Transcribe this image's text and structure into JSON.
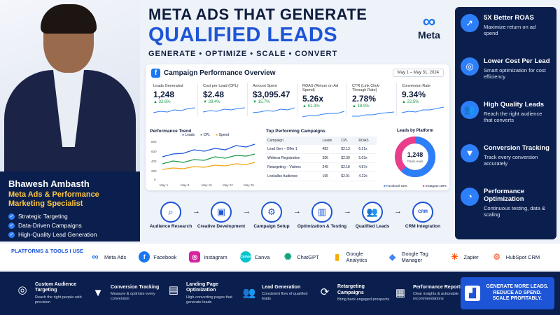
{
  "profile": {
    "name": "Bhawesh Ambasth",
    "role": "Meta Ads & Performance Marketing Specialist",
    "skills": [
      "Strategic Targeting",
      "Data-Driven Campaigns",
      "High-Quality Lead Generation"
    ]
  },
  "header": {
    "line1": "META ADS THAT GENERATE",
    "line2": "QUALIFIED LEADS",
    "tagline": "GENERATE • OPTIMIZE • SCALE • CONVERT",
    "logo_word": "Meta",
    "colors": {
      "accent": "#1d55d6",
      "navy": "#0b1f4e",
      "gold": "#ffc83d"
    }
  },
  "benefits": [
    {
      "icon": "rocket-icon",
      "title": "5X Better ROAS",
      "desc": "Maximize return on ad spend"
    },
    {
      "icon": "target-icon",
      "title": "Lower Cost Per Lead",
      "desc": "Smart optimization for cost efficiency"
    },
    {
      "icon": "people-icon",
      "title": "High Quality Leads",
      "desc": "Reach the right audience that converts"
    },
    {
      "icon": "funnel-icon",
      "title": "Conversion Tracking",
      "desc": "Track every conversion accurately"
    },
    {
      "icon": "gauge-icon",
      "title": "Performance Optimization",
      "desc": "Continuous testing, data & scaling"
    }
  ],
  "dashboard": {
    "title": "Campaign Performance Overview",
    "date_range": "May 1 – May 31, 2024",
    "kpis": [
      {
        "label": "Leads Generated",
        "value": "1,248",
        "change": "▲ 32.6%"
      },
      {
        "label": "Cost per Lead (CPL)",
        "value": "$2.48",
        "change": "▼ 28.4%"
      },
      {
        "label": "Amount Spent",
        "value": "$3,095.47",
        "change": "▼ 15.7%"
      },
      {
        "label": "ROAS (Return on Ad Spend)",
        "value": "5.26x",
        "change": "▲ 61.3%"
      },
      {
        "label": "CTR (Link Click-Through Rate)",
        "value": "2.78%",
        "change": "▲ 18.9%"
      },
      {
        "label": "Conversion Rate",
        "value": "9.34%",
        "change": "▲ 22.5%"
      }
    ],
    "trend": {
      "title": "Performance Trend",
      "legend": [
        "Leads",
        "CPL",
        "Spend"
      ],
      "x_labels": [
        "May 1",
        "May 8",
        "May 15",
        "May 22",
        "May 29"
      ],
      "y_labels": [
        "800",
        "600",
        "400",
        "200",
        "0"
      ]
    },
    "campaigns": {
      "title": "Top Performing Campaigns",
      "columns": [
        "Campaign",
        "Leads",
        "CPL",
        "ROAS"
      ],
      "rows": [
        [
          "Lead Gen – Offer 1",
          "482",
          "$2.13",
          "6.21x"
        ],
        [
          "Webinar Registration",
          "356",
          "$2.30",
          "5.03x"
        ],
        [
          "Retargeting – Visitors",
          "245",
          "$2.18",
          "4.87x"
        ],
        [
          "Lookalike Audience",
          "165",
          "$2.91",
          "4.22x"
        ]
      ]
    },
    "platforms": {
      "title": "Leads by Platform",
      "total": "1,248",
      "total_label": "Total Leads",
      "facebook_label": "Facebook 62%",
      "instagram_label": "Instagram 38%",
      "facebook_pct": 62,
      "instagram_pct": 38
    }
  },
  "process": [
    {
      "icon": "magnifier-icon",
      "label": "Audience Research"
    },
    {
      "icon": "image-icon",
      "label": "Creative Development"
    },
    {
      "icon": "gear-icon",
      "label": "Campaign Setup"
    },
    {
      "icon": "bar-chart-icon",
      "label": "Optimization & Testing"
    },
    {
      "icon": "people-icon",
      "label": "Qualified Leads"
    },
    {
      "icon": "crm-icon",
      "label": "CRM Integration",
      "badge": "CRM"
    }
  ],
  "tools": {
    "label": "PLATFORMS & TOOLS I USE",
    "items": [
      {
        "name": "Meta Ads",
        "glyph": "∞",
        "color": "#1877f2"
      },
      {
        "name": "Facebook",
        "glyph": "f",
        "color": "#1877f2"
      },
      {
        "name": "Instagram",
        "glyph": "◎",
        "color": "#d6249f"
      },
      {
        "name": "Canva",
        "glyph": "C",
        "color": "#00c4cc"
      },
      {
        "name": "ChatGPT",
        "glyph": "✺",
        "color": "#10a37f"
      },
      {
        "name": "Google Analytics",
        "glyph": "▮",
        "color": "#f9ab00"
      },
      {
        "name": "Google Tag Manager",
        "glyph": "◆",
        "color": "#4285f4"
      },
      {
        "name": "Zapier",
        "glyph": "✳",
        "color": "#ff4a00"
      },
      {
        "name": "HubSpot CRM",
        "glyph": "⚙",
        "color": "#ff7a59"
      }
    ]
  },
  "footer": {
    "items": [
      {
        "icon": "target-icon",
        "title": "Custom Audience Targeting",
        "desc": "Reach the right people with precision"
      },
      {
        "icon": "funnel-icon",
        "title": "Conversion Tracking",
        "desc": "Measure & optimize every conversion"
      },
      {
        "icon": "webpage-icon",
        "title": "Landing Page Optimization",
        "desc": "High-converting pages that generate leads"
      },
      {
        "icon": "people-icon",
        "title": "Lead Generation",
        "desc": "Consistent flow of qualified leads"
      },
      {
        "icon": "refresh-icon",
        "title": "Retargeting Campaigns",
        "desc": "Bring back engaged prospects"
      },
      {
        "icon": "document-icon",
        "title": "Performance Reporting",
        "desc": "Clear insights & actionable recommendations"
      }
    ],
    "cta": "GENERATE MORE LEADS. REDUCE AD SPEND. SCALE PROFITABLY."
  }
}
